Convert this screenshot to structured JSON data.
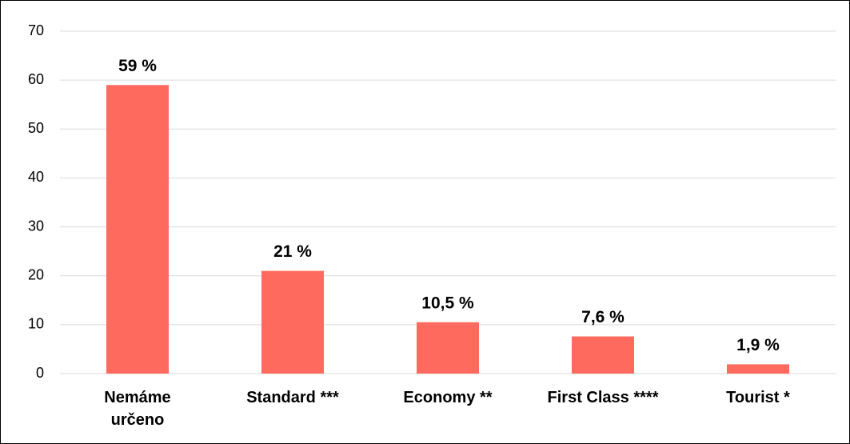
{
  "chart_data": {
    "type": "bar",
    "categories": [
      "Nemáme určeno",
      "Standard ***",
      "Economy **",
      "First Class ****",
      "Tourist *"
    ],
    "values": [
      59,
      21,
      10.5,
      7.6,
      1.9
    ],
    "value_labels": [
      "59 %",
      "21 %",
      "10,5 %",
      "7,6 %",
      "1,9 %"
    ],
    "color": "#ff6a5e",
    "ylim": [
      0,
      70
    ],
    "yticks": [
      0,
      10,
      20,
      30,
      40,
      50,
      60,
      70
    ],
    "grid": true
  }
}
